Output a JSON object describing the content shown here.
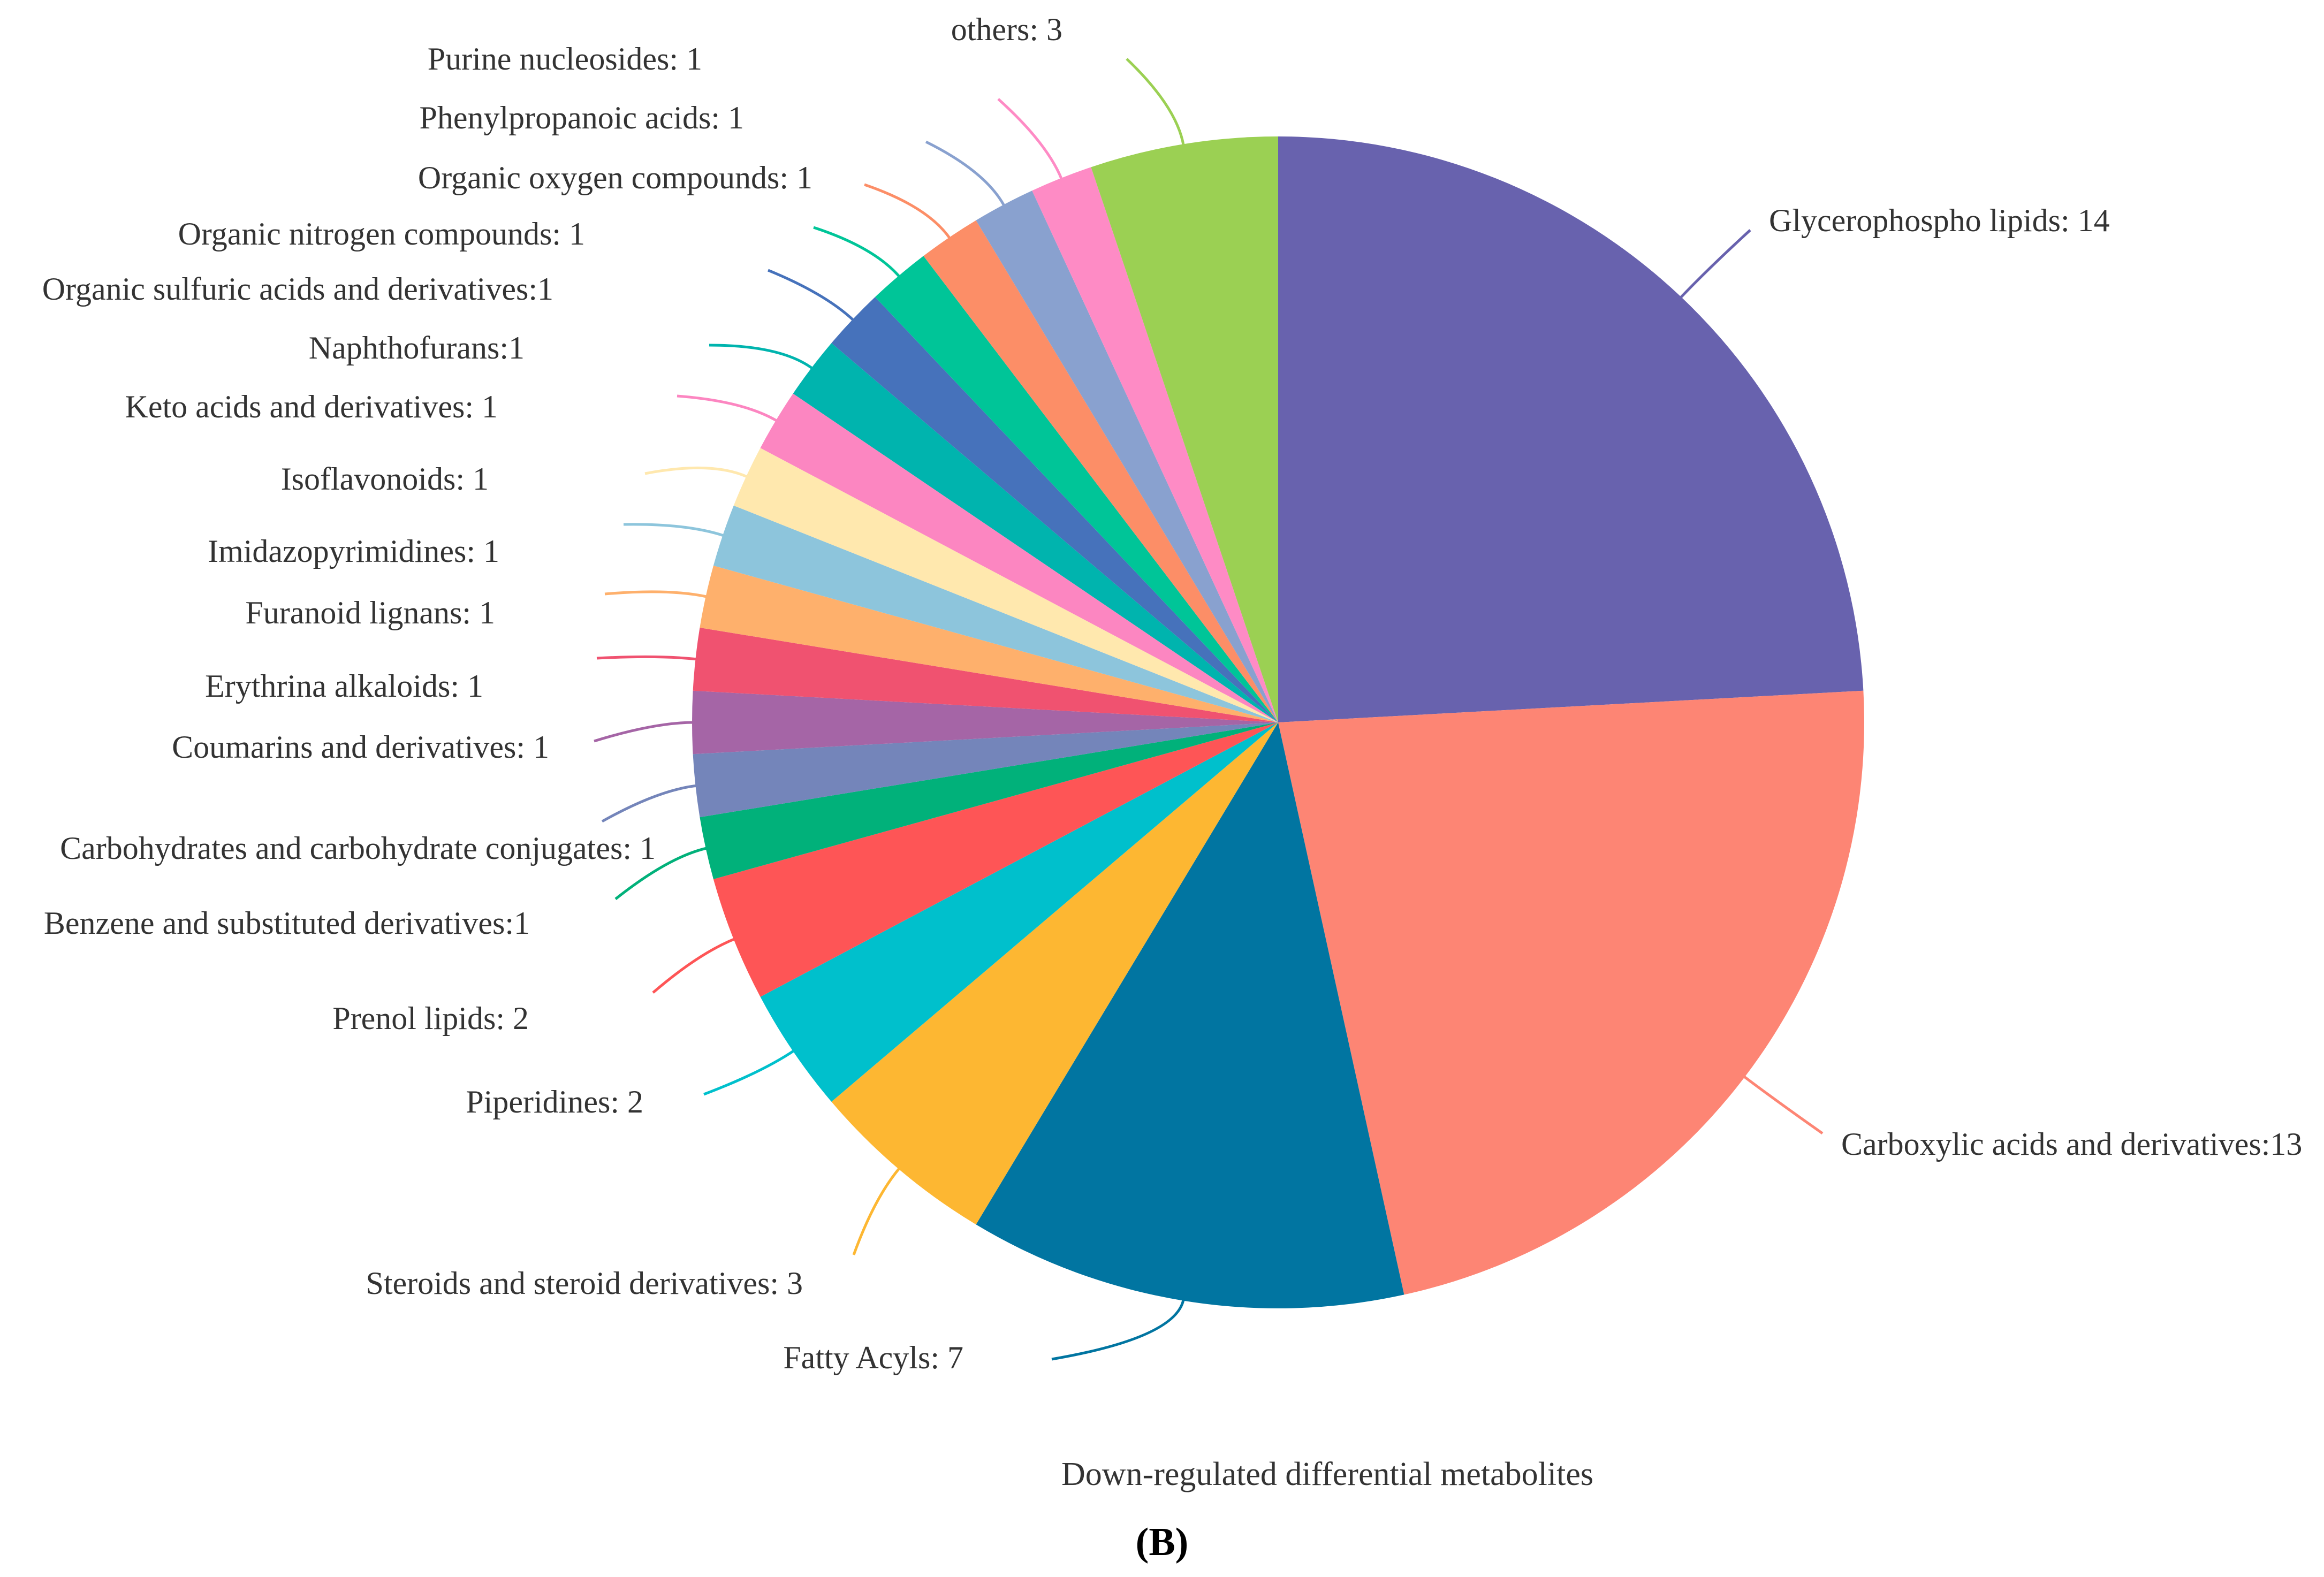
{
  "chart_data": {
    "type": "pie",
    "caption": "Down-regulated differential metabolites",
    "panel_label": "(B)",
    "panel_letter": "B",
    "slices": [
      {
        "label": "Glycerophospho lipids: 14",
        "value": 14,
        "color": "#6862ae"
      },
      {
        "label": "Carboxylic acids and derivatives:13",
        "value": 13,
        "color": "#fd8574"
      },
      {
        "label": "Fatty Acyls: 7",
        "value": 7,
        "color": "#0175a1"
      },
      {
        "label": "Steroids and steroid derivatives: 3",
        "value": 3,
        "color": "#fdb732"
      },
      {
        "label": "Piperidines: 2",
        "value": 2,
        "color": "#00c0cc"
      },
      {
        "label": "Prenol lipids: 2",
        "value": 2,
        "color": "#fe5556"
      },
      {
        "label": "Benzene and substituted derivatives:1",
        "value": 1,
        "color": "#01b17a"
      },
      {
        "label": "Carbohydrates and carbohydrate conjugates: 1",
        "value": 1,
        "color": "#7485ba"
      },
      {
        "label": "Coumarins and derivatives: 1",
        "value": 1,
        "color": "#a565a6"
      },
      {
        "label": "Erythrina alkaloids: 1",
        "value": 1,
        "color": "#f05270"
      },
      {
        "label": "Furanoid lignans: 1",
        "value": 1,
        "color": "#feb06c"
      },
      {
        "label": "Imidazopyrimidines: 1",
        "value": 1,
        "color": "#8dc5dc"
      },
      {
        "label": "Isoflavonoids: 1",
        "value": 1,
        "color": "#ffe8ae"
      },
      {
        "label": "Keto acids and derivatives: 1",
        "value": 1,
        "color": "#fc86c1"
      },
      {
        "label": "Naphthofurans:1",
        "value": 1,
        "color": "#00b4ae"
      },
      {
        "label": "Organic sulfuric acids and derivatives:1",
        "value": 1,
        "color": "#4672bb"
      },
      {
        "label": "Organic nitrogen compounds: 1",
        "value": 1,
        "color": "#00c598"
      },
      {
        "label": "Organic oxygen compounds: 1",
        "value": 1,
        "color": "#fc8e67"
      },
      {
        "label": "Phenylpropanoic acids: 1",
        "value": 1,
        "color": "#89a1cf"
      },
      {
        "label": "Purine nucleosides: 1",
        "value": 1,
        "color": "#fe8bc5"
      },
      {
        "label": "others: 3",
        "value": 3,
        "color": "#9bd053"
      }
    ]
  }
}
